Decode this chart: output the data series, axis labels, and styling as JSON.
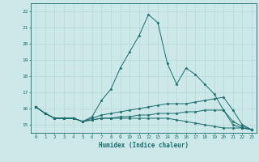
{
  "title": "",
  "xlabel": "Humidex (Indice chaleur)",
  "background_color": "#cce8e8",
  "line_color": "#1a6b6b",
  "grid_color": "#b8d8d8",
  "xlim": [
    -0.5,
    23.5
  ],
  "ylim": [
    14.5,
    22.5
  ],
  "yticks": [
    15,
    16,
    17,
    18,
    19,
    20,
    21,
    22
  ],
  "xticks": [
    0,
    1,
    2,
    3,
    4,
    5,
    6,
    7,
    8,
    9,
    10,
    11,
    12,
    13,
    14,
    15,
    16,
    17,
    18,
    19,
    20,
    21,
    22,
    23
  ],
  "series": [
    [
      16.1,
      15.7,
      15.4,
      15.4,
      15.4,
      15.2,
      15.5,
      16.5,
      17.2,
      18.5,
      19.5,
      20.5,
      21.8,
      21.3,
      18.8,
      17.5,
      18.5,
      18.1,
      17.5,
      16.9,
      15.9,
      15.0,
      14.8,
      14.7
    ],
    [
      16.1,
      15.7,
      15.4,
      15.4,
      15.4,
      15.2,
      15.4,
      15.6,
      15.7,
      15.8,
      15.9,
      16.0,
      16.1,
      16.2,
      16.3,
      16.3,
      16.3,
      16.4,
      16.5,
      16.6,
      16.7,
      15.9,
      15.0,
      14.7
    ],
    [
      16.1,
      15.7,
      15.4,
      15.4,
      15.4,
      15.2,
      15.3,
      15.4,
      15.4,
      15.4,
      15.4,
      15.4,
      15.4,
      15.4,
      15.4,
      15.3,
      15.2,
      15.1,
      15.0,
      14.9,
      14.8,
      14.8,
      14.8,
      14.7
    ],
    [
      16.1,
      15.7,
      15.4,
      15.4,
      15.4,
      15.2,
      15.3,
      15.4,
      15.4,
      15.5,
      15.5,
      15.6,
      15.6,
      15.7,
      15.7,
      15.7,
      15.8,
      15.8,
      15.9,
      15.9,
      15.9,
      15.2,
      14.9,
      14.7
    ]
  ]
}
